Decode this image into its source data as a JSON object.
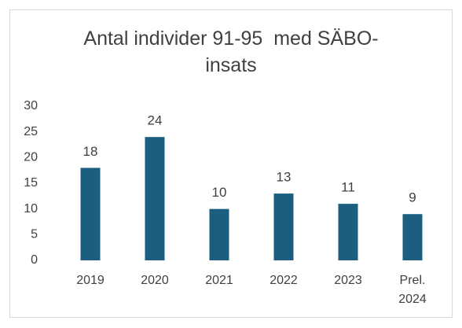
{
  "chart_data": {
    "type": "bar",
    "title": "Antal individer 91-95  med SÄBO-insats",
    "categories": [
      "2019",
      "2020",
      "2021",
      "2022",
      "2023",
      "Prel. 2024"
    ],
    "values": [
      18,
      24,
      10,
      13,
      11,
      9
    ],
    "color": "#1b5e80",
    "ylim": [
      0,
      30
    ],
    "yticks": [
      0,
      5,
      10,
      15,
      20,
      25,
      30
    ],
    "grid": false
  }
}
